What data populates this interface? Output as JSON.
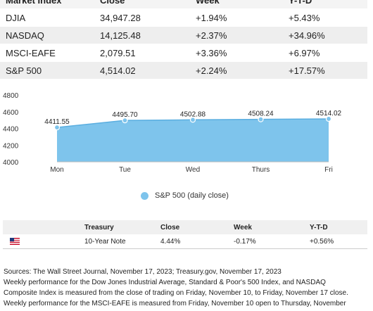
{
  "index_table": {
    "headers": [
      "Market Index",
      "Close",
      "Week",
      "Y-T-D"
    ],
    "rows": [
      [
        "DJIA",
        "34,947.28",
        "+1.94%",
        "+5.43%"
      ],
      [
        "NASDAQ",
        "14,125.48",
        "+2.37%",
        "+34.96%"
      ],
      [
        "MSCI-EAFE",
        "2,079.51",
        "+3.36%",
        "+6.97%"
      ],
      [
        "S&P 500",
        "4,514.02",
        "+2.24%",
        "+17.57%"
      ]
    ]
  },
  "chart_data": {
    "type": "area",
    "categories": [
      "Mon",
      "Tue",
      "Wed",
      "Thurs",
      "Fri"
    ],
    "series": [
      {
        "name": "S&P 500 (daily close)",
        "values": [
          4411.55,
          4495.7,
          4502.88,
          4508.24,
          4514.02
        ],
        "value_labels": [
          "4411.55",
          "4495.70",
          "4502.88",
          "4508.24",
          "4514.02"
        ]
      }
    ],
    "yticks": [
      "4800",
      "4600",
      "4400",
      "4200",
      "4000"
    ],
    "ylim": [
      4000,
      4800
    ],
    "color": "#7ec4ec",
    "legend_position": "bottom-center"
  },
  "legend": {
    "label": "S&P 500 (daily close)"
  },
  "treasury_table": {
    "headers": [
      "",
      "Treasury",
      "Close",
      "Week",
      "Y-T-D"
    ],
    "row": {
      "flag_icon": "us-flag-icon",
      "name": "10-Year Note",
      "close": "4.44%",
      "week": "-0.17%",
      "ytd": "+0.56%"
    }
  },
  "notes": [
    "Sources: The Wall Street Journal, November 17, 2023; Treasury.gov, November 17, 2023",
    "Weekly performance for the Dow Jones Industrial Average, Standard & Poor's 500 Index, and NASDAQ",
    "Composite Index is measured from the close of trading on Friday, November 10, to Friday, November 17 close.",
    "Weekly performance for the MSCI-EAFE is measured from Friday, November 10 open to Thursday, November"
  ]
}
